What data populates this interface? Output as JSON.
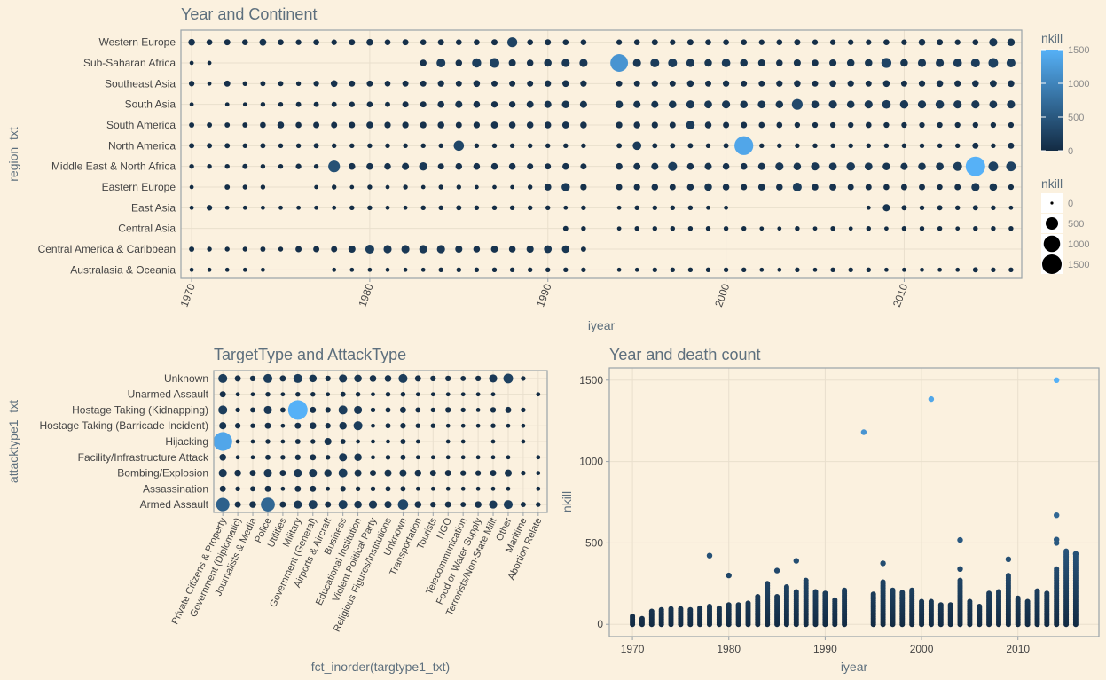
{
  "chart_data": [
    {
      "type": "scatter",
      "title": "Year and Continent",
      "xlabel": "iyear",
      "ylabel": "region_txt",
      "xlim": [
        1969.4,
        2016.6
      ],
      "xticks": [
        1970,
        1980,
        1990,
        2000,
        2010
      ],
      "categories": [
        "Australasia & Oceania",
        "Central America & Caribbean",
        "Central Asia",
        "East Asia",
        "Eastern Europe",
        "Middle East & North Africa",
        "North America",
        "South America",
        "South Asia",
        "Southeast Asia",
        "Sub-Saharan Africa",
        "Western Europe"
      ],
      "years": [
        1970,
        1971,
        1972,
        1973,
        1974,
        1975,
        1976,
        1977,
        1978,
        1979,
        1980,
        1981,
        1982,
        1983,
        1984,
        1985,
        1986,
        1987,
        1988,
        1989,
        1990,
        1991,
        1992,
        1994,
        1995,
        1996,
        1997,
        1998,
        1999,
        2000,
        2001,
        2002,
        2003,
        2004,
        2005,
        2006,
        2007,
        2008,
        2009,
        2010,
        2011,
        2012,
        2013,
        2014,
        2015,
        2016
      ],
      "grid": true,
      "max_nkill_by_region_year": {
        "Western Europe": [
          80,
          50,
          60,
          50,
          90,
          50,
          40,
          50,
          40,
          60,
          80,
          50,
          60,
          50,
          60,
          50,
          50,
          60,
          270,
          50,
          60,
          50,
          50,
          40,
          50,
          60,
          40,
          60,
          50,
          50,
          50,
          40,
          50,
          60,
          40,
          40,
          40,
          40,
          50,
          40,
          80,
          60,
          40,
          50,
          150,
          120
        ],
        "Sub-Saharan Africa": [
          10,
          10,
          0,
          0,
          0,
          0,
          0,
          0,
          0,
          0,
          0,
          0,
          0,
          80,
          200,
          80,
          220,
          250,
          100,
          80,
          120,
          150,
          150,
          1180,
          150,
          200,
          200,
          150,
          120,
          180,
          120,
          100,
          80,
          100,
          80,
          100,
          120,
          120,
          280,
          120,
          150,
          150,
          180,
          200,
          250,
          200
        ],
        "Southeast Asia": [
          40,
          10,
          60,
          20,
          30,
          30,
          20,
          40,
          80,
          60,
          60,
          50,
          60,
          60,
          70,
          60,
          80,
          60,
          60,
          60,
          70,
          80,
          70,
          60,
          60,
          70,
          60,
          80,
          60,
          70,
          60,
          60,
          70,
          80,
          60,
          80,
          70,
          60,
          80,
          60,
          70,
          80,
          70,
          80,
          90,
          80
        ],
        "South Asia": [
          10,
          0,
          10,
          10,
          20,
          20,
          30,
          30,
          30,
          40,
          50,
          30,
          60,
          60,
          80,
          100,
          80,
          70,
          70,
          90,
          100,
          120,
          100,
          120,
          100,
          100,
          120,
          150,
          130,
          150,
          120,
          130,
          120,
          340,
          130,
          150,
          120,
          150,
          180,
          160,
          150,
          170,
          150,
          150,
          130,
          150
        ],
        "South America": [
          30,
          30,
          30,
          30,
          50,
          80,
          50,
          60,
          60,
          60,
          80,
          70,
          70,
          70,
          80,
          60,
          70,
          90,
          80,
          80,
          80,
          90,
          80,
          70,
          80,
          70,
          60,
          180,
          80,
          60,
          60,
          50,
          50,
          40,
          40,
          40,
          40,
          50,
          40,
          40,
          40,
          40,
          40,
          40,
          40,
          40
        ],
        "North America": [
          30,
          30,
          30,
          20,
          30,
          20,
          20,
          30,
          20,
          20,
          20,
          20,
          20,
          20,
          20,
          300,
          20,
          20,
          20,
          20,
          20,
          20,
          20,
          30,
          180,
          30,
          30,
          30,
          20,
          30,
          1380,
          20,
          20,
          20,
          20,
          20,
          20,
          20,
          20,
          20,
          20,
          20,
          20,
          60,
          20,
          60
        ],
        "Middle East & North Africa": [
          20,
          20,
          20,
          30,
          20,
          20,
          40,
          20,
          420,
          80,
          80,
          80,
          100,
          160,
          60,
          80,
          80,
          80,
          80,
          60,
          60,
          80,
          60,
          80,
          90,
          100,
          200,
          80,
          100,
          80,
          80,
          100,
          150,
          120,
          150,
          130,
          170,
          130,
          120,
          100,
          120,
          130,
          200,
          1500,
          250,
          250
        ],
        "Eastern Europe": [
          10,
          0,
          30,
          20,
          20,
          0,
          0,
          10,
          20,
          10,
          20,
          10,
          20,
          10,
          20,
          20,
          10,
          10,
          10,
          20,
          90,
          160,
          70,
          60,
          70,
          80,
          60,
          80,
          120,
          80,
          60,
          90,
          80,
          200,
          80,
          90,
          60,
          60,
          50,
          60,
          60,
          40,
          60,
          150,
          120,
          40
        ],
        "East Asia": [
          10,
          40,
          10,
          10,
          10,
          10,
          10,
          10,
          10,
          20,
          20,
          10,
          10,
          20,
          20,
          30,
          20,
          20,
          20,
          20,
          20,
          10,
          20,
          10,
          20,
          20,
          20,
          20,
          10,
          10,
          0,
          0,
          0,
          0,
          0,
          0,
          0,
          10,
          100,
          30,
          20,
          30,
          20,
          30,
          20,
          10
        ],
        "Central Asia": [
          0,
          0,
          0,
          0,
          0,
          0,
          0,
          0,
          0,
          0,
          0,
          0,
          0,
          0,
          0,
          0,
          0,
          0,
          0,
          0,
          0,
          30,
          20,
          10,
          20,
          20,
          20,
          20,
          20,
          20,
          20,
          10,
          10,
          20,
          10,
          20,
          10,
          20,
          10,
          20,
          20,
          20,
          10,
          20,
          20,
          20
        ],
        "Central America & Caribbean": [
          30,
          20,
          20,
          20,
          30,
          20,
          60,
          60,
          60,
          100,
          200,
          150,
          150,
          150,
          150,
          100,
          80,
          90,
          80,
          100,
          130,
          120,
          30,
          0,
          0,
          0,
          0,
          0,
          0,
          0,
          0,
          0,
          0,
          0,
          0,
          0,
          0,
          0,
          0,
          0,
          0,
          0,
          0,
          0,
          0,
          0
        ],
        "Australasia & Oceania": [
          10,
          10,
          10,
          10,
          10,
          0,
          0,
          0,
          10,
          10,
          10,
          10,
          10,
          10,
          20,
          20,
          20,
          20,
          20,
          20,
          20,
          20,
          20,
          10,
          10,
          20,
          20,
          20,
          20,
          20,
          20,
          10,
          10,
          20,
          10,
          20,
          20,
          20,
          10,
          10,
          10,
          10,
          10,
          30,
          20,
          20
        ]
      }
    },
    {
      "type": "scatter",
      "title": "TargetType and AttackType",
      "xlabel": "fct_inorder(targtype1_txt)",
      "ylabel": "attacktype1_txt",
      "x_categories": [
        "Private Citizens & Property",
        "Government (Diplomatic)",
        "Journalists & Media",
        "Police",
        "Utilities",
        "Military",
        "Government (General)",
        "Airports & Aircraft",
        "Business",
        "Educational Institution",
        "Violent Political Party",
        "Religious Figures/Institutions",
        "Unknown",
        "Transportation",
        "Tourists",
        "NGO",
        "Telecommunication",
        "Food or Water Supply",
        "Terrorists/Non-State Militia",
        "Other",
        "Maritime",
        "Abortion Related"
      ],
      "x_tick_labels": [
        "Private Citizens & Property",
        "Government (Diplomatic)",
        "Journalists & Media",
        "Police",
        "Utilities",
        "Military",
        "Government (General)",
        "Airports & Aircraft",
        "Business",
        "Educational Institution",
        "Violent Political Party",
        "Religious Figures/Institutions",
        "Unknown",
        "Transportation",
        "Tourists",
        "NGO",
        "Telecommunication",
        "Food or Water Supply",
        "Terrorists/Non-State Milit",
        "Other",
        "Maritime",
        "Abortion Relate"
      ],
      "y_categories": [
        "Armed Assault",
        "Assassination",
        "Bombing/Explosion",
        "Facility/Infrastructure Attack",
        "Hijacking",
        "Hostage Taking (Barricade Incident)",
        "Hostage Taking (Kidnapping)",
        "Unarmed Assault",
        "Unknown"
      ],
      "grid": true,
      "max_nkill": {
        "Unknown": [
          200,
          60,
          40,
          200,
          60,
          200,
          120,
          40,
          150,
          120,
          80,
          80,
          200,
          60,
          40,
          40,
          30,
          40,
          150,
          250,
          20,
          0
        ],
        "Unarmed Assault": [
          60,
          10,
          10,
          20,
          10,
          20,
          20,
          10,
          30,
          20,
          10,
          20,
          20,
          10,
          10,
          10,
          10,
          10,
          10,
          0,
          0,
          10
        ],
        "Hostage Taking (Kidnapping)": [
          200,
          20,
          30,
          150,
          30,
          1500,
          60,
          40,
          200,
          150,
          20,
          30,
          60,
          30,
          20,
          40,
          20,
          10,
          40,
          60,
          20,
          0
        ],
        "Hostage Taking (Barricade Incident)": [
          100,
          40,
          20,
          60,
          10,
          60,
          80,
          40,
          120,
          200,
          10,
          30,
          40,
          20,
          20,
          10,
          10,
          10,
          20,
          10,
          10,
          0
        ],
        "Hijacking": [
          1380,
          10,
          10,
          20,
          10,
          30,
          20,
          100,
          30,
          10,
          10,
          10,
          30,
          10,
          0,
          10,
          10,
          0,
          10,
          0,
          10,
          0
        ],
        "Facility/Infrastructure Attack": [
          80,
          10,
          10,
          30,
          20,
          40,
          60,
          20,
          150,
          120,
          10,
          20,
          30,
          10,
          10,
          10,
          10,
          10,
          10,
          10,
          0,
          10
        ],
        "Bombing/Explosion": [
          150,
          80,
          60,
          150,
          60,
          150,
          150,
          120,
          200,
          100,
          60,
          100,
          100,
          80,
          60,
          60,
          40,
          40,
          60,
          100,
          20,
          10
        ],
        "Assassination": [
          60,
          20,
          30,
          60,
          10,
          60,
          60,
          10,
          40,
          20,
          20,
          30,
          30,
          10,
          10,
          10,
          10,
          10,
          10,
          10,
          0,
          10
        ],
        "Armed Assault": [
          600,
          60,
          80,
          670,
          60,
          150,
          200,
          60,
          200,
          120,
          150,
          100,
          300,
          80,
          40,
          60,
          30,
          80,
          150,
          200,
          30,
          20
        ]
      }
    },
    {
      "type": "scatter",
      "title": "Year and death count",
      "xlabel": "iyear",
      "ylabel": "nkill",
      "xlim": [
        1967.6,
        2018.4
      ],
      "ylim": [
        -75,
        1575
      ],
      "xticks": [
        1970,
        1980,
        1990,
        2000,
        2010
      ],
      "yticks": [
        0,
        500,
        1000,
        1500
      ],
      "grid": true,
      "notable_points": [
        {
          "x": 1994,
          "y": 1180
        },
        {
          "x": 2001,
          "y": 1384
        },
        {
          "x": 2014,
          "y": 1500
        },
        {
          "x": 2014,
          "y": 670
        },
        {
          "x": 2014,
          "y": 520
        },
        {
          "x": 2014,
          "y": 500
        },
        {
          "x": 2004,
          "y": 518
        },
        {
          "x": 2004,
          "y": 340
        },
        {
          "x": 1978,
          "y": 422
        },
        {
          "x": 2016,
          "y": 433
        },
        {
          "x": 2009,
          "y": 400
        },
        {
          "x": 1987,
          "y": 390
        },
        {
          "x": 1996,
          "y": 375
        },
        {
          "x": 1985,
          "y": 330
        },
        {
          "x": 1980,
          "y": 300
        }
      ],
      "column_top_by_year": [
        50,
        35,
        80,
        90,
        95,
        95,
        90,
        100,
        110,
        100,
        120,
        120,
        130,
        170,
        250,
        170,
        230,
        200,
        270,
        200,
        190,
        150,
        210,
        0,
        185,
        260,
        210,
        195,
        210,
        140,
        140,
        120,
        120,
        270,
        140,
        110,
        190,
        200,
        300,
        160,
        140,
        205,
        190,
        340,
        450,
        430
      ]
    }
  ],
  "legend": {
    "color_title": "nkill",
    "color_ticks": [
      "0",
      "500",
      "1000",
      "1500"
    ],
    "size_title": "nkill",
    "size_ticks": [
      "0",
      "500",
      "1000",
      "1500"
    ],
    "gradient_low": "#132b43",
    "gradient_high": "#56b1f7"
  }
}
